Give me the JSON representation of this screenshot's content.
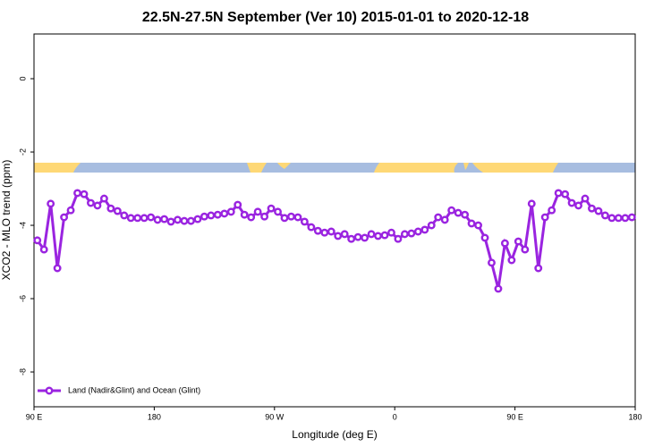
{
  "chart_data": {
    "type": "line",
    "title": "22.5N-27.5N September (Ver 10)   2015-01-01 to 2020-12-18",
    "x_label": "Longitude (deg E)",
    "y_label": "XCO2 - MLO trend (ppm)",
    "xlim": [
      90,
      540
    ],
    "xticks": [
      {
        "value": 90,
        "label": "90 E"
      },
      {
        "value": 180,
        "label": "180"
      },
      {
        "value": 270,
        "label": "90 W"
      },
      {
        "value": 360,
        "label": "0"
      },
      {
        "value": 450,
        "label": "90 E"
      },
      {
        "value": 540,
        "label": "180"
      }
    ],
    "ylim": [
      -8.95,
      1.22
    ],
    "yticks": [
      0,
      -2,
      -4,
      -6,
      -8
    ],
    "legend": "bottom-left",
    "x": [
      92.5,
      97.5,
      102.5,
      107.5,
      112.5,
      117.5,
      122.5,
      127.5,
      132.5,
      137.5,
      142.5,
      147.5,
      152.5,
      157.5,
      162.5,
      167.5,
      172.5,
      177.5,
      182.5,
      187.5,
      192.5,
      197.5,
      202.5,
      207.5,
      212.5,
      217.5,
      222.5,
      227.5,
      232.5,
      237.5,
      242.5,
      247.5,
      252.5,
      257.5,
      262.5,
      267.5,
      272.5,
      277.5,
      282.5,
      287.5,
      292.5,
      297.5,
      302.5,
      307.5,
      312.5,
      317.5,
      322.5,
      327.5,
      332.5,
      337.5,
      342.5,
      347.5,
      352.5,
      357.5,
      362.5,
      367.5,
      372.5,
      377.5,
      382.5,
      387.5,
      392.5,
      397.5,
      402.5,
      407.5,
      412.5,
      417.5,
      422.5,
      427.5,
      432.5,
      437.5,
      442.5,
      447.5,
      452.5,
      457.5,
      462.5,
      467.5,
      472.5,
      477.5,
      482.5,
      487.5,
      492.5,
      497.5,
      502.5,
      507.5,
      512.5,
      517.5,
      522.5,
      527.5,
      532.5,
      537.5
    ],
    "series": [
      {
        "name": "Land (Nadir&Glint) and Ocean (Glint)",
        "color": "#9a24e0",
        "values": [
          -4.41,
          -4.66,
          -3.41,
          -5.17,
          -3.78,
          -3.59,
          -3.12,
          -3.15,
          -3.39,
          -3.46,
          -3.27,
          -3.54,
          -3.61,
          -3.73,
          -3.8,
          -3.8,
          -3.8,
          -3.78,
          -3.85,
          -3.83,
          -3.9,
          -3.85,
          -3.88,
          -3.88,
          -3.83,
          -3.76,
          -3.73,
          -3.71,
          -3.68,
          -3.63,
          -3.44,
          -3.71,
          -3.78,
          -3.63,
          -3.76,
          -3.54,
          -3.63,
          -3.8,
          -3.76,
          -3.78,
          -3.9,
          -4.05,
          -4.15,
          -4.2,
          -4.17,
          -4.29,
          -4.24,
          -4.37,
          -4.32,
          -4.34,
          -4.24,
          -4.29,
          -4.27,
          -4.2,
          -4.37,
          -4.24,
          -4.22,
          -4.17,
          -4.12,
          -4.0,
          -3.78,
          -3.85,
          -3.59,
          -3.66,
          -3.71,
          -3.95,
          -4.0,
          -4.34,
          -5.02,
          -5.73,
          -4.49,
          -4.95,
          -4.44,
          -4.66,
          -3.41,
          -5.17,
          -3.78,
          -3.59,
          -3.12,
          -3.15,
          -3.39,
          -3.46,
          -3.27,
          -3.54,
          -3.61,
          -3.73,
          -3.8,
          -3.8,
          -3.8,
          -3.78
        ]
      }
    ]
  }
}
